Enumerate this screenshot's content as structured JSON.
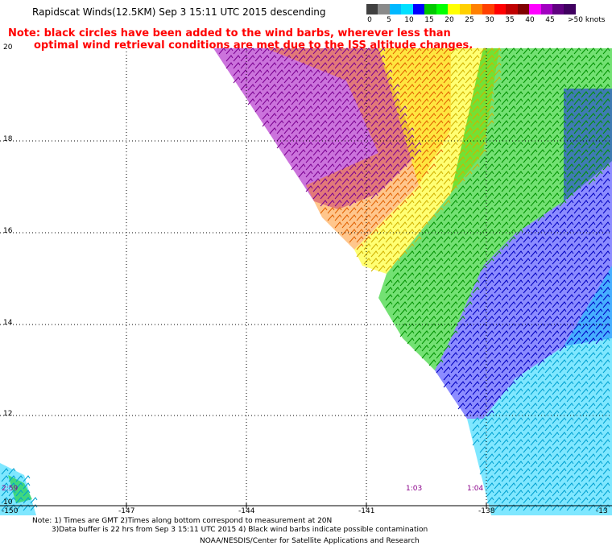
{
  "title": "Rapidscat Winds(12.5KM) Sep  3 15:11 UTC 2015 descending",
  "note": {
    "line1": "Note: black circles have been added to the wind barbs, wherever less than",
    "line2": "optimal wind retrieval conditions are met due to the ISS altitude changes."
  },
  "legend": {
    "colors": [
      "#404040",
      "#8a8a8a",
      "#00b8ff",
      "#00e0ff",
      "#0000ff",
      "#00c800",
      "#00ff00",
      "#ffff00",
      "#ffd000",
      "#ff8000",
      "#ff4000",
      "#ff0000",
      "#c00000",
      "#800000",
      "#ff00ff",
      "#a000c0",
      "#600080",
      "#400060"
    ],
    "labels": [
      "0",
      "5",
      "10",
      "15",
      "20",
      "25",
      "30",
      "35",
      "40",
      "45",
      ">50 knots"
    ]
  },
  "axes": {
    "lat_labels": [
      "20",
      "18",
      "16",
      "14",
      "12",
      "10"
    ],
    "lon_labels": [
      "-150",
      "-147",
      "-144",
      "-141",
      "-138",
      "-13"
    ]
  },
  "times": [
    "2:59",
    "1:03",
    "1:04"
  ],
  "footer": {
    "line1": "Note: 1) Times are GMT 2)Times along bottom correspond to measurement at 20N",
    "line2": "3)Data buffer is 22 hrs from Sep  3 15:11 UTC 2015 4) Black wind barbs indicate possible contamination",
    "credit": "NOAA/NESDIS/Center for Satellite Applications and Research"
  }
}
